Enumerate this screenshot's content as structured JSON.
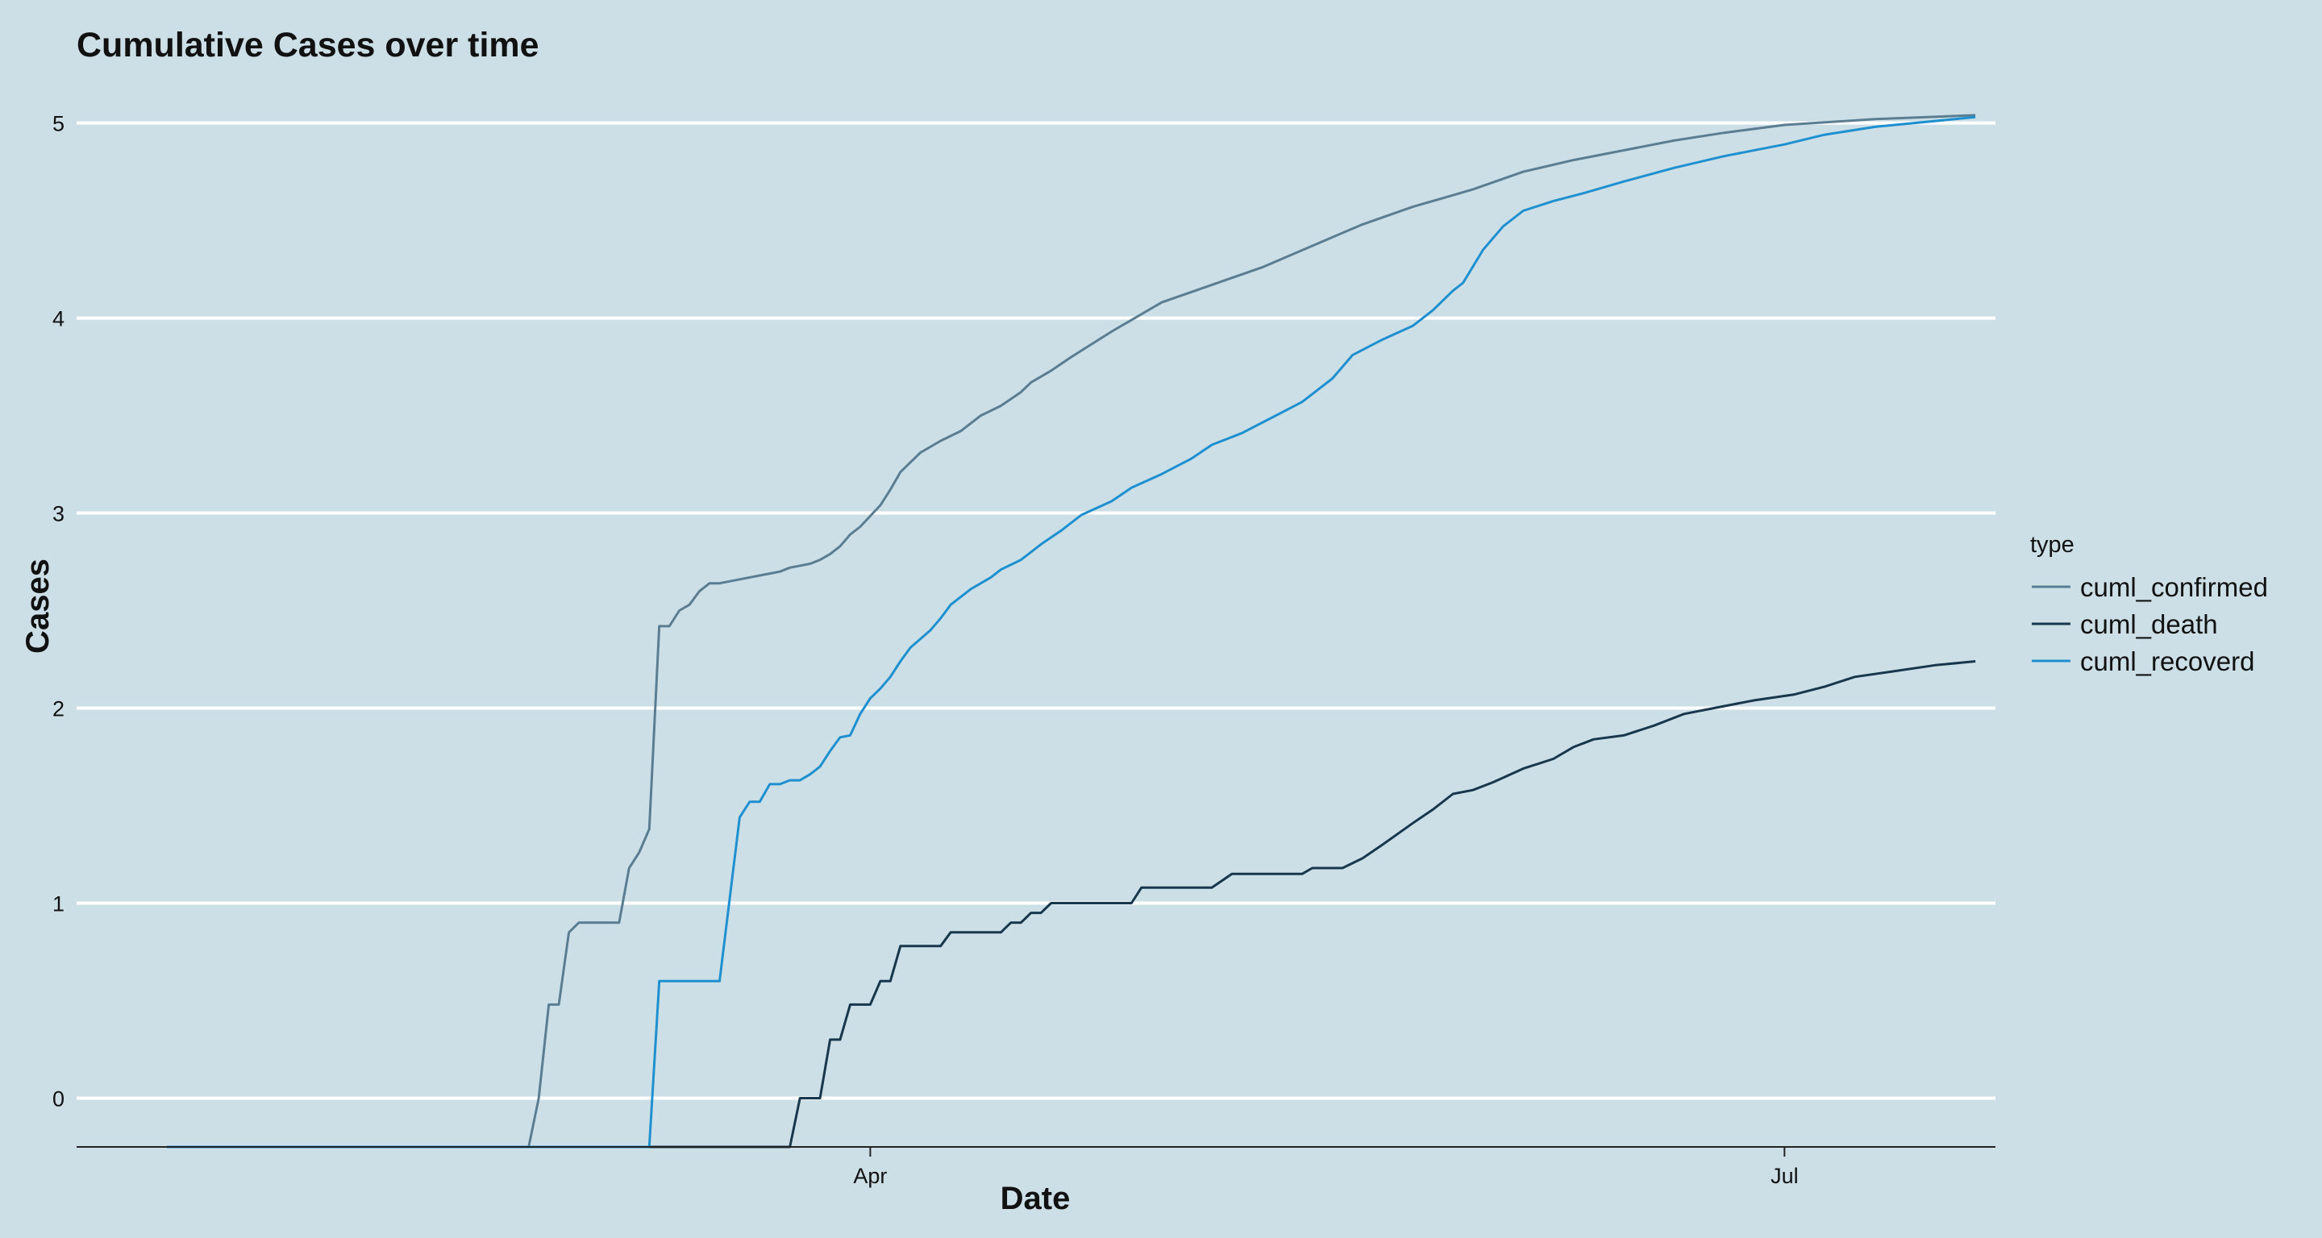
{
  "chart_data": {
    "type": "line",
    "title": "Cumulative Cases over time",
    "xlabel": "Date",
    "ylabel": "Cases",
    "x_range": [
      "2020-01-13",
      "2020-07-22"
    ],
    "xticks": [
      {
        "date": "2020-04-01",
        "label": "Apr"
      },
      {
        "date": "2020-07-01",
        "label": "Jul"
      }
    ],
    "ylim": [
      -0.25,
      5.3
    ],
    "yticks": [
      0,
      1,
      2,
      3,
      4,
      5
    ],
    "grid": "horizontal",
    "legend": {
      "title": "type",
      "position": "right"
    },
    "colors": {
      "background": "#cddfe6",
      "gridline": "#ffffff",
      "axis": "#222222",
      "text": "#111111"
    },
    "series": [
      {
        "name": "cuml_confirmed",
        "color": "#5a7d92",
        "points": [
          [
            "2020-01-22",
            -0.25
          ],
          [
            "2020-02-27",
            -0.25
          ],
          [
            "2020-02-28",
            0.0
          ],
          [
            "2020-02-29",
            0.48
          ],
          [
            "2020-03-01",
            0.48
          ],
          [
            "2020-03-02",
            0.85
          ],
          [
            "2020-03-03",
            0.9
          ],
          [
            "2020-03-05",
            0.9
          ],
          [
            "2020-03-07",
            0.9
          ],
          [
            "2020-03-08",
            1.18
          ],
          [
            "2020-03-09",
            1.26
          ],
          [
            "2020-03-10",
            1.38
          ],
          [
            "2020-03-11",
            2.42
          ],
          [
            "2020-03-12",
            2.42
          ],
          [
            "2020-03-13",
            2.5
          ],
          [
            "2020-03-14",
            2.53
          ],
          [
            "2020-03-15",
            2.6
          ],
          [
            "2020-03-16",
            2.64
          ],
          [
            "2020-03-17",
            2.64
          ],
          [
            "2020-03-19",
            2.66
          ],
          [
            "2020-03-21",
            2.68
          ],
          [
            "2020-03-22",
            2.69
          ],
          [
            "2020-03-23",
            2.7
          ],
          [
            "2020-03-24",
            2.72
          ],
          [
            "2020-03-26",
            2.74
          ],
          [
            "2020-03-27",
            2.76
          ],
          [
            "2020-03-28",
            2.79
          ],
          [
            "2020-03-29",
            2.83
          ],
          [
            "2020-03-30",
            2.89
          ],
          [
            "2020-03-31",
            2.93
          ],
          [
            "2020-04-02",
            3.04
          ],
          [
            "2020-04-03",
            3.12
          ],
          [
            "2020-04-04",
            3.21
          ],
          [
            "2020-04-06",
            3.31
          ],
          [
            "2020-04-08",
            3.37
          ],
          [
            "2020-04-10",
            3.42
          ],
          [
            "2020-04-12",
            3.5
          ],
          [
            "2020-04-14",
            3.55
          ],
          [
            "2020-04-16",
            3.62
          ],
          [
            "2020-04-17",
            3.67
          ],
          [
            "2020-04-19",
            3.73
          ],
          [
            "2020-04-21",
            3.8
          ],
          [
            "2020-04-25",
            3.93
          ],
          [
            "2020-04-30",
            4.08
          ],
          [
            "2020-05-05",
            4.17
          ],
          [
            "2020-05-10",
            4.26
          ],
          [
            "2020-05-15",
            4.37
          ],
          [
            "2020-05-20",
            4.48
          ],
          [
            "2020-05-25",
            4.57
          ],
          [
            "2020-05-31",
            4.66
          ],
          [
            "2020-06-05",
            4.75
          ],
          [
            "2020-06-10",
            4.81
          ],
          [
            "2020-06-15",
            4.86
          ],
          [
            "2020-06-20",
            4.91
          ],
          [
            "2020-06-25",
            4.95
          ],
          [
            "2020-07-01",
            4.99
          ],
          [
            "2020-07-10",
            5.02
          ],
          [
            "2020-07-20",
            5.04
          ]
        ]
      },
      {
        "name": "cuml_death",
        "color": "#17374d",
        "points": [
          [
            "2020-01-22",
            -0.25
          ],
          [
            "2020-03-24",
            -0.25
          ],
          [
            "2020-03-25",
            0.0
          ],
          [
            "2020-03-27",
            0.0
          ],
          [
            "2020-03-28",
            0.3
          ],
          [
            "2020-03-29",
            0.3
          ],
          [
            "2020-03-30",
            0.48
          ],
          [
            "2020-04-01",
            0.48
          ],
          [
            "2020-04-02",
            0.6
          ],
          [
            "2020-04-03",
            0.6
          ],
          [
            "2020-04-04",
            0.78
          ],
          [
            "2020-04-08",
            0.78
          ],
          [
            "2020-04-09",
            0.85
          ],
          [
            "2020-04-14",
            0.85
          ],
          [
            "2020-04-15",
            0.9
          ],
          [
            "2020-04-16",
            0.9
          ],
          [
            "2020-04-17",
            0.95
          ],
          [
            "2020-04-18",
            0.95
          ],
          [
            "2020-04-19",
            1.0
          ],
          [
            "2020-04-27",
            1.0
          ],
          [
            "2020-04-28",
            1.08
          ],
          [
            "2020-05-05",
            1.08
          ],
          [
            "2020-05-07",
            1.15
          ],
          [
            "2020-05-14",
            1.15
          ],
          [
            "2020-05-15",
            1.18
          ],
          [
            "2020-05-18",
            1.18
          ],
          [
            "2020-05-20",
            1.23
          ],
          [
            "2020-05-22",
            1.3
          ],
          [
            "2020-05-25",
            1.41
          ],
          [
            "2020-05-27",
            1.48
          ],
          [
            "2020-05-29",
            1.56
          ],
          [
            "2020-05-31",
            1.58
          ],
          [
            "2020-06-02",
            1.62
          ],
          [
            "2020-06-05",
            1.69
          ],
          [
            "2020-06-08",
            1.74
          ],
          [
            "2020-06-10",
            1.8
          ],
          [
            "2020-06-12",
            1.84
          ],
          [
            "2020-06-15",
            1.86
          ],
          [
            "2020-06-18",
            1.91
          ],
          [
            "2020-06-21",
            1.97
          ],
          [
            "2020-06-24",
            2.0
          ],
          [
            "2020-06-28",
            2.04
          ],
          [
            "2020-07-02",
            2.07
          ],
          [
            "2020-07-05",
            2.11
          ],
          [
            "2020-07-08",
            2.16
          ],
          [
            "2020-07-12",
            2.19
          ],
          [
            "2020-07-16",
            2.22
          ],
          [
            "2020-07-20",
            2.24
          ]
        ]
      },
      {
        "name": "cuml_recoverd",
        "color": "#1e90d0",
        "points": [
          [
            "2020-01-22",
            -0.25
          ],
          [
            "2020-03-10",
            -0.25
          ],
          [
            "2020-03-11",
            0.6
          ],
          [
            "2020-03-16",
            0.6
          ],
          [
            "2020-03-17",
            0.6
          ],
          [
            "2020-03-19",
            1.44
          ],
          [
            "2020-03-20",
            1.52
          ],
          [
            "2020-03-21",
            1.52
          ],
          [
            "2020-03-22",
            1.61
          ],
          [
            "2020-03-23",
            1.61
          ],
          [
            "2020-03-24",
            1.63
          ],
          [
            "2020-03-25",
            1.63
          ],
          [
            "2020-03-26",
            1.66
          ],
          [
            "2020-03-27",
            1.7
          ],
          [
            "2020-03-28",
            1.78
          ],
          [
            "2020-03-29",
            1.85
          ],
          [
            "2020-03-30",
            1.86
          ],
          [
            "2020-03-31",
            1.97
          ],
          [
            "2020-04-01",
            2.05
          ],
          [
            "2020-04-02",
            2.1
          ],
          [
            "2020-04-03",
            2.16
          ],
          [
            "2020-04-04",
            2.24
          ],
          [
            "2020-04-05",
            2.31
          ],
          [
            "2020-04-07",
            2.4
          ],
          [
            "2020-04-08",
            2.46
          ],
          [
            "2020-04-09",
            2.53
          ],
          [
            "2020-04-11",
            2.61
          ],
          [
            "2020-04-13",
            2.67
          ],
          [
            "2020-04-14",
            2.71
          ],
          [
            "2020-04-16",
            2.76
          ],
          [
            "2020-04-18",
            2.84
          ],
          [
            "2020-04-20",
            2.91
          ],
          [
            "2020-04-22",
            2.99
          ],
          [
            "2020-04-25",
            3.06
          ],
          [
            "2020-04-27",
            3.13
          ],
          [
            "2020-04-30",
            3.2
          ],
          [
            "2020-05-03",
            3.28
          ],
          [
            "2020-05-05",
            3.35
          ],
          [
            "2020-05-08",
            3.41
          ],
          [
            "2020-05-11",
            3.49
          ],
          [
            "2020-05-14",
            3.57
          ],
          [
            "2020-05-17",
            3.69
          ],
          [
            "2020-05-19",
            3.81
          ],
          [
            "2020-05-22",
            3.89
          ],
          [
            "2020-05-25",
            3.96
          ],
          [
            "2020-05-27",
            4.04
          ],
          [
            "2020-05-29",
            4.14
          ],
          [
            "2020-05-30",
            4.18
          ],
          [
            "2020-06-01",
            4.35
          ],
          [
            "2020-06-03",
            4.47
          ],
          [
            "2020-06-05",
            4.55
          ],
          [
            "2020-06-08",
            4.6
          ],
          [
            "2020-06-11",
            4.64
          ],
          [
            "2020-06-15",
            4.7
          ],
          [
            "2020-06-20",
            4.77
          ],
          [
            "2020-06-25",
            4.83
          ],
          [
            "2020-07-01",
            4.89
          ],
          [
            "2020-07-05",
            4.94
          ],
          [
            "2020-07-10",
            4.98
          ],
          [
            "2020-07-20",
            5.03
          ]
        ]
      }
    ]
  }
}
